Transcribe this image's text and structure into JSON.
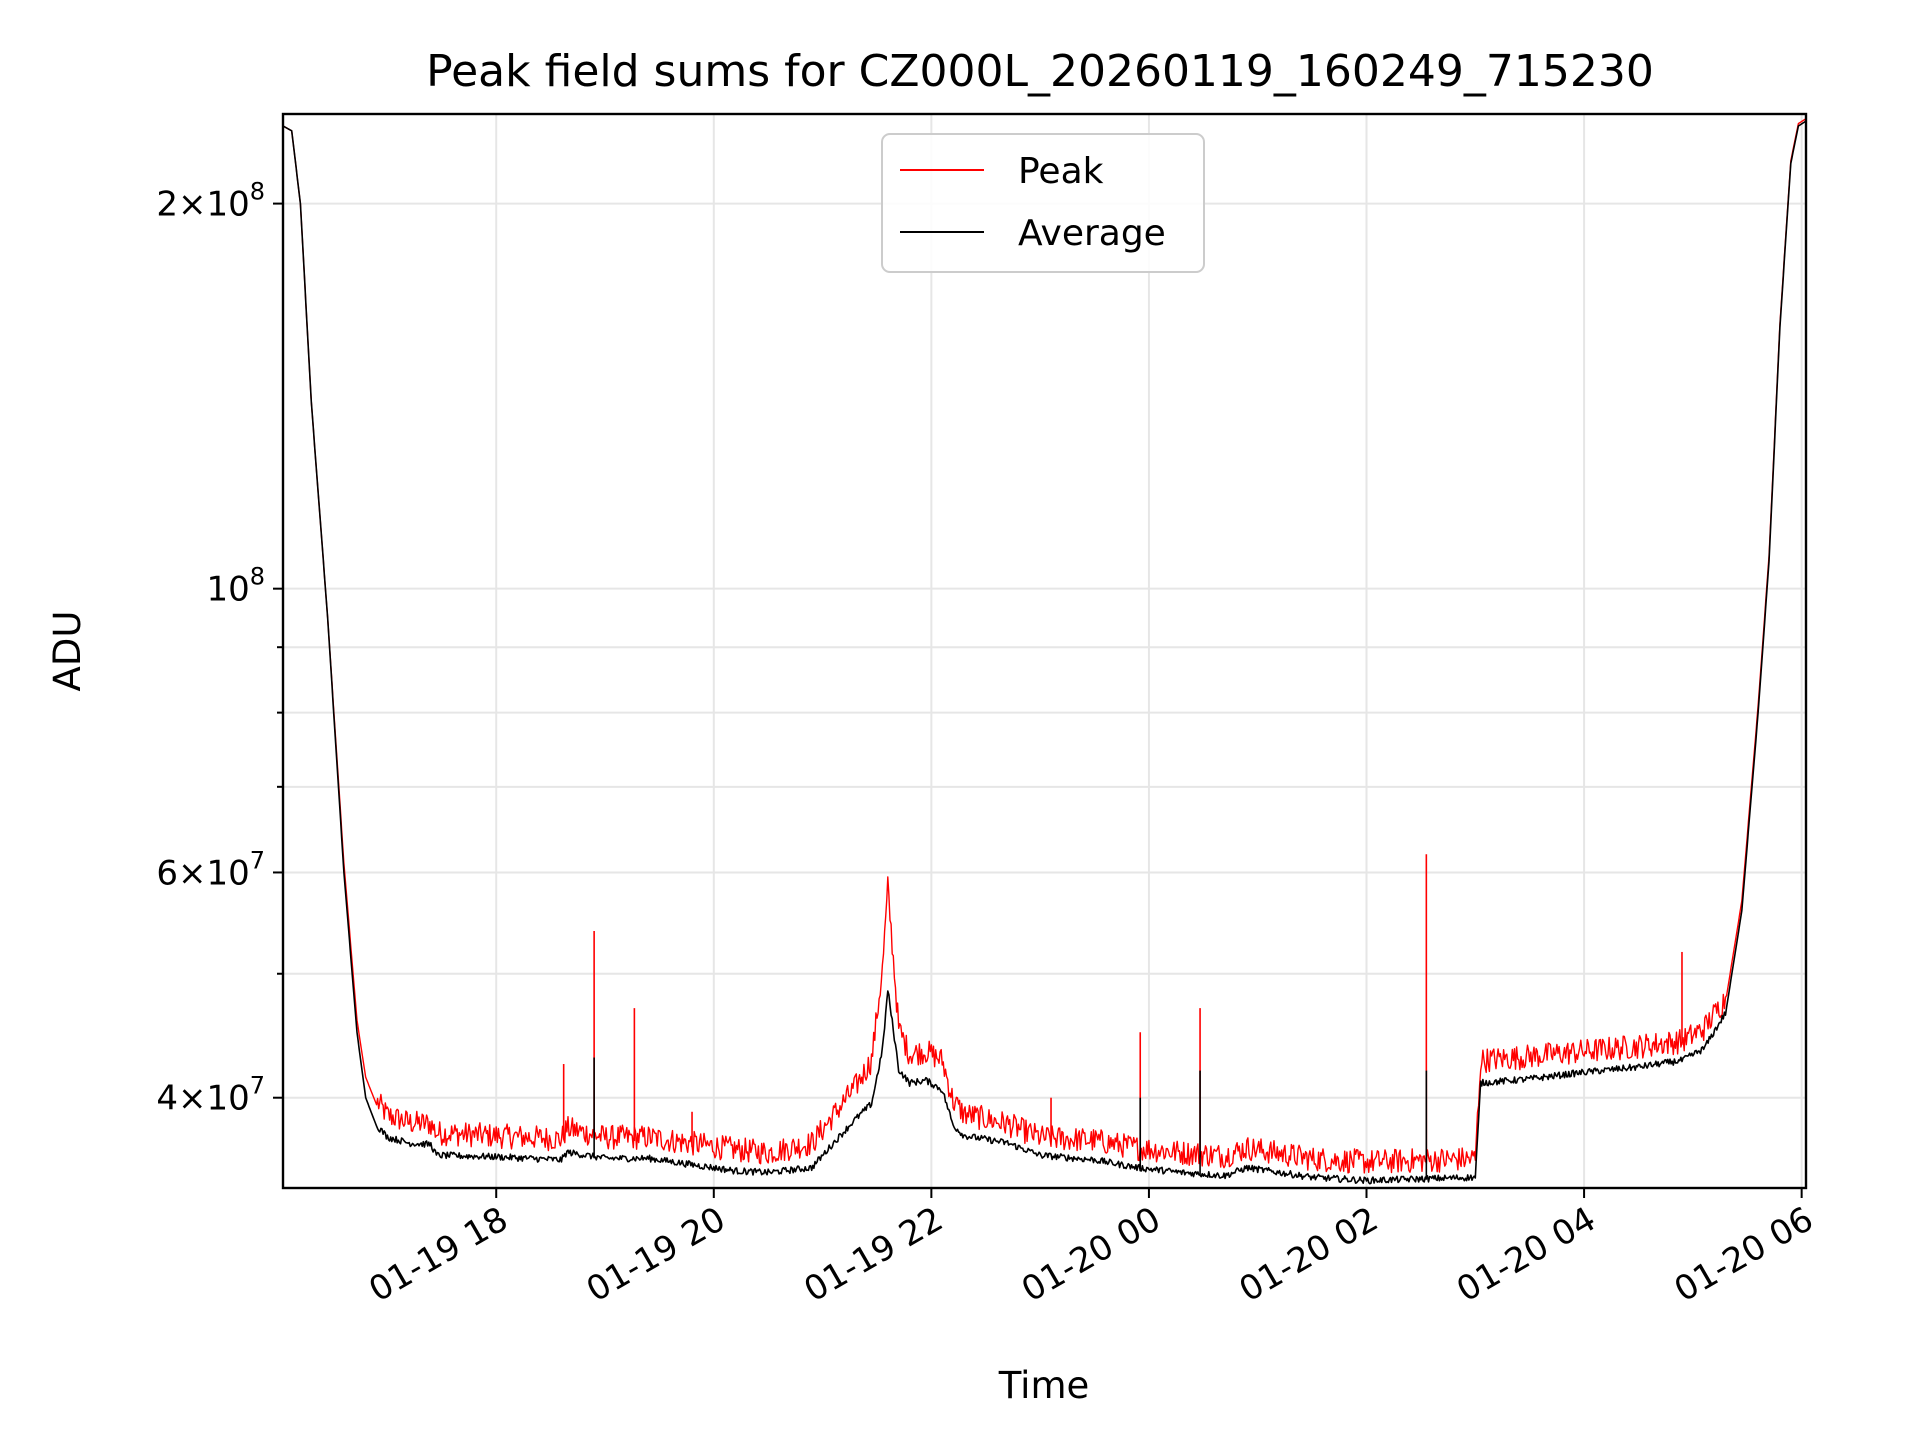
{
  "chart_data": {
    "type": "line",
    "title": "Peak field sums for CZ000L_20260119_160249_715230",
    "xlabel": "Time",
    "ylabel": "ADU",
    "yscale": "log",
    "xlim_hours": [
      16.04,
      30.04
    ],
    "ylim": [
      34000000,
      235000000
    ],
    "x_ticks": [
      {
        "label": "01-19 18",
        "hour": 18
      },
      {
        "label": "01-19 20",
        "hour": 20
      },
      {
        "label": "01-19 22",
        "hour": 22
      },
      {
        "label": "01-20 00",
        "hour": 24
      },
      {
        "label": "01-20 02",
        "hour": 26
      },
      {
        "label": "01-20 04",
        "hour": 28
      },
      {
        "label": "01-20 06",
        "hour": 30
      }
    ],
    "y_major_ticks": [
      {
        "base": "4×10",
        "exp": "7",
        "value": 40000000
      },
      {
        "base": "6×10",
        "exp": "7",
        "value": 60000000
      },
      {
        "base": "10",
        "exp": "8",
        "value": 100000000
      },
      {
        "base": "2×10",
        "exp": "8",
        "value": 200000000
      }
    ],
    "y_minor_ticks": [
      50000000,
      70000000,
      80000000,
      90000000
    ],
    "legend": {
      "location": "top-center",
      "entries": [
        {
          "label": "Peak",
          "color": "#ff0000"
        },
        {
          "label": "Average",
          "color": "#000000"
        }
      ]
    },
    "series": [
      {
        "name": "Average",
        "color": "#000000",
        "x_hours": [
          16.04,
          16.12,
          16.2,
          16.3,
          16.45,
          16.6,
          16.72,
          16.8,
          16.9,
          17.0,
          17.2,
          17.4,
          17.45,
          18.0,
          18.6,
          18.65,
          19.0,
          19.4,
          19.8,
          20.2,
          20.5,
          20.9,
          21.1,
          21.3,
          21.45,
          21.55,
          21.6,
          21.7,
          21.8,
          21.95,
          22.1,
          22.2,
          22.3,
          22.7,
          23.0,
          23.5,
          23.9,
          24.3,
          24.7,
          24.9,
          25.5,
          26.0,
          26.5,
          27.0,
          27.05,
          27.5,
          28.0,
          28.5,
          28.9,
          29.1,
          29.3,
          29.45,
          29.6,
          29.7,
          29.8,
          29.9,
          29.97,
          30.04
        ],
        "values": [
          230000000,
          228000000,
          200000000,
          140000000,
          95000000,
          60000000,
          45000000,
          40000000,
          38000000,
          37200000,
          36800000,
          36700000,
          36000000,
          35900000,
          35700000,
          36200000,
          35800000,
          35800000,
          35400000,
          35000000,
          34900000,
          35200000,
          36800000,
          38400000,
          39500000,
          43500000,
          48500000,
          42000000,
          41000000,
          41200000,
          40500000,
          38000000,
          37300000,
          36800000,
          36000000,
          35700000,
          35200000,
          34900000,
          34700000,
          35200000,
          34600000,
          34400000,
          34500000,
          34600000,
          41000000,
          41300000,
          41800000,
          42200000,
          42700000,
          43600000,
          46500000,
          56000000,
          80000000,
          105000000,
          160000000,
          215000000,
          230000000,
          232000000
        ]
      },
      {
        "name": "Peak",
        "color": "#ff0000",
        "x_hours": [
          16.04,
          16.12,
          16.2,
          16.3,
          16.45,
          16.6,
          16.72,
          16.8,
          16.9,
          17.0,
          17.2,
          17.4,
          17.45,
          18.0,
          18.6,
          18.65,
          19.0,
          19.4,
          19.8,
          20.2,
          20.5,
          20.9,
          21.1,
          21.3,
          21.45,
          21.55,
          21.6,
          21.7,
          21.8,
          21.95,
          22.1,
          22.2,
          22.3,
          22.7,
          23.0,
          23.5,
          23.9,
          24.3,
          24.7,
          24.9,
          25.5,
          26.0,
          26.5,
          27.0,
          27.05,
          27.5,
          28.0,
          28.5,
          28.9,
          29.1,
          29.3,
          29.45,
          29.6,
          29.7,
          29.8,
          29.9,
          29.97,
          30.04
        ],
        "values": [
          230000000,
          228000000,
          200000000,
          140000000,
          95000000,
          61000000,
          46000000,
          41500000,
          39500000,
          38500000,
          38000000,
          37900000,
          37300000,
          37100000,
          36900000,
          37600000,
          37000000,
          37000000,
          36600000,
          36200000,
          36000000,
          36600000,
          38500000,
          40500000,
          42500000,
          50000000,
          58000000,
          45000000,
          43000000,
          43200000,
          42500000,
          39500000,
          38600000,
          37900000,
          37000000,
          36800000,
          36300000,
          36000000,
          35800000,
          36300000,
          35600000,
          35400000,
          35500000,
          35600000,
          42500000,
          42800000,
          43200000,
          43600000,
          44000000,
          45000000,
          47500000,
          57000000,
          81000000,
          106000000,
          161000000,
          216000000,
          231000000,
          233000000
        ]
      }
    ],
    "peak_spikes": [
      {
        "x_hour": 18.62,
        "value": 42500000
      },
      {
        "x_hour": 18.9,
        "value": 54000000
      },
      {
        "x_hour": 19.27,
        "value": 47000000
      },
      {
        "x_hour": 19.8,
        "value": 39000000
      },
      {
        "x_hour": 23.1,
        "value": 40000000
      },
      {
        "x_hour": 23.92,
        "value": 45000000
      },
      {
        "x_hour": 24.47,
        "value": 47000000
      },
      {
        "x_hour": 26.55,
        "value": 62000000
      },
      {
        "x_hour": 28.9,
        "value": 52000000
      }
    ],
    "average_spikes": [
      {
        "x_hour": 18.9,
        "value": 43000000
      },
      {
        "x_hour": 23.92,
        "value": 40000000
      },
      {
        "x_hour": 24.47,
        "value": 42000000
      },
      {
        "x_hour": 26.55,
        "value": 42000000
      }
    ]
  }
}
